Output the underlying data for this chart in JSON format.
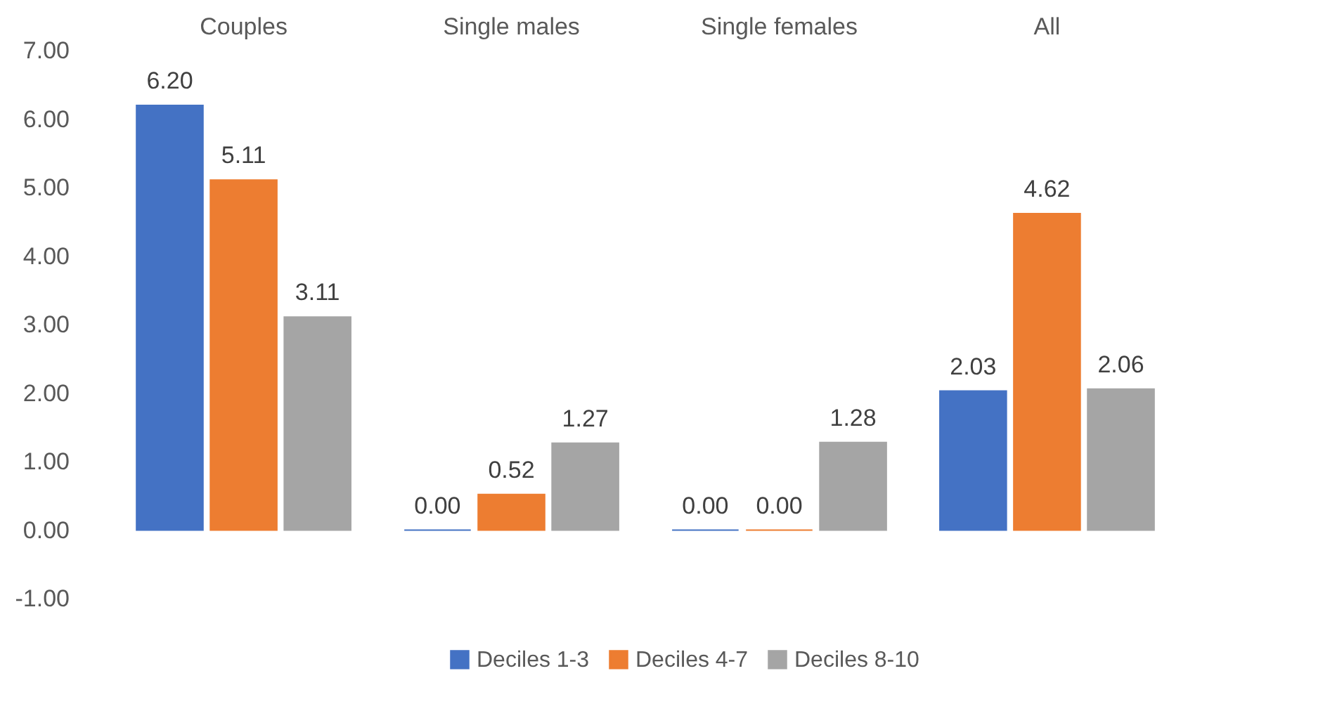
{
  "chart_data": {
    "type": "bar",
    "categories": [
      "Couples",
      "Single males",
      "Single females",
      "All"
    ],
    "series": [
      {
        "name": "Deciles 1-3",
        "color": "#4472c4",
        "values": [
          6.2,
          0.0,
          0.0,
          2.03
        ],
        "value_labels": [
          "6.20",
          "0.00",
          "0.00",
          "2.03"
        ]
      },
      {
        "name": "Deciles 4-7",
        "color": "#ed7d31",
        "values": [
          5.11,
          0.52,
          0.0,
          4.62
        ],
        "value_labels": [
          "5.11",
          "0.52",
          "0.00",
          "4.62"
        ]
      },
      {
        "name": "Deciles 8-10",
        "color": "#a5a5a5",
        "values": [
          3.11,
          1.27,
          1.28,
          2.06
        ],
        "value_labels": [
          "3.11",
          "1.27",
          "1.28",
          "2.06"
        ]
      }
    ],
    "ylim": [
      -1,
      7
    ],
    "yticks": [
      {
        "value": -1,
        "label": "-1.00"
      },
      {
        "value": 0,
        "label": "0.00"
      },
      {
        "value": 1,
        "label": "1.00"
      },
      {
        "value": 2,
        "label": "2.00"
      },
      {
        "value": 3,
        "label": "3.00"
      },
      {
        "value": 4,
        "label": "4.00"
      },
      {
        "value": 5,
        "label": "5.00"
      },
      {
        "value": 6,
        "label": "6.00"
      },
      {
        "value": 7,
        "label": "7.00"
      }
    ],
    "grid": false,
    "legend": "bottom"
  }
}
